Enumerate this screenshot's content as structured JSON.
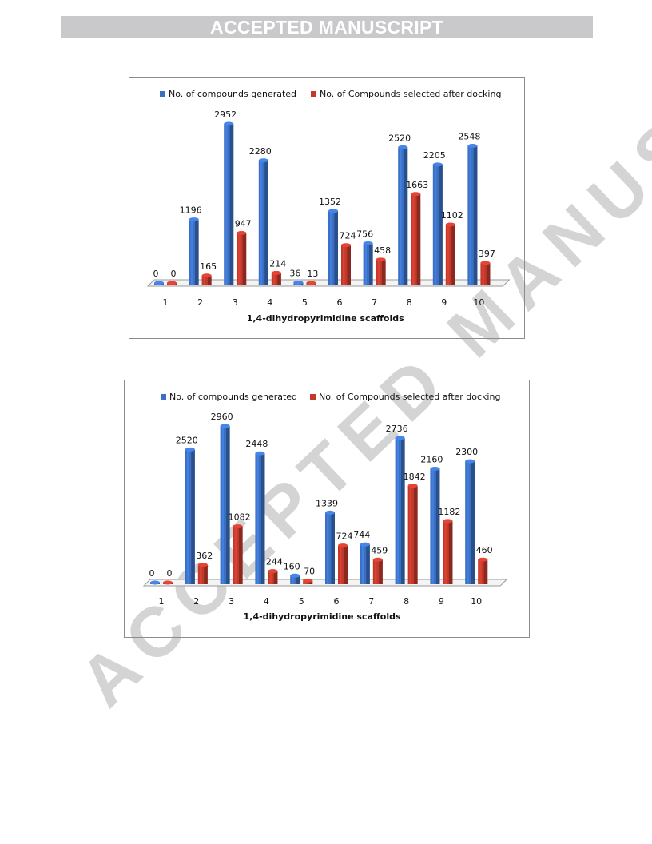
{
  "header": {
    "banner_text": "ACCEPTED MANUSCRIPT"
  },
  "watermark_text": "ACCEPTED MANUSCRIPT",
  "colors": {
    "generated": "#3a6fc2",
    "selected": "#c0392b",
    "banner_bg": "#c9c9cb",
    "watermark": "#d4d4d4"
  },
  "chart_data": [
    {
      "type": "bar",
      "categories": [
        "1",
        "2",
        "3",
        "4",
        "5",
        "6",
        "7",
        "8",
        "9",
        "10"
      ],
      "series": [
        {
          "name": "No. of compounds generated",
          "values": [
            0,
            1196,
            2952,
            2280,
            36,
            1352,
            756,
            2520,
            2205,
            2548
          ]
        },
        {
          "name": "No. of Compounds selected after docking",
          "values": [
            0,
            165,
            947,
            214,
            13,
            724,
            458,
            1663,
            1102,
            397
          ]
        }
      ],
      "xlabel": "1,4-dihydropyrimidine scaffolds",
      "ylabel": "",
      "legend": "top",
      "ylim": [
        0,
        2952
      ],
      "grid": false
    },
    {
      "type": "bar",
      "categories": [
        "1",
        "2",
        "3",
        "4",
        "5",
        "6",
        "7",
        "8",
        "9",
        "10"
      ],
      "series": [
        {
          "name": "No. of compounds generated",
          "values": [
            0,
            2520,
            2960,
            2448,
            160,
            1339,
            744,
            2736,
            2160,
            2300
          ]
        },
        {
          "name": "No. of Compounds selected after docking",
          "values": [
            0,
            362,
            1082,
            244,
            70,
            724,
            459,
            1842,
            1182,
            460
          ]
        }
      ],
      "xlabel": "1,4-dihydropyrimidine scaffolds",
      "ylabel": "",
      "legend": "top",
      "ylim": [
        0,
        2960
      ],
      "grid": false
    }
  ]
}
